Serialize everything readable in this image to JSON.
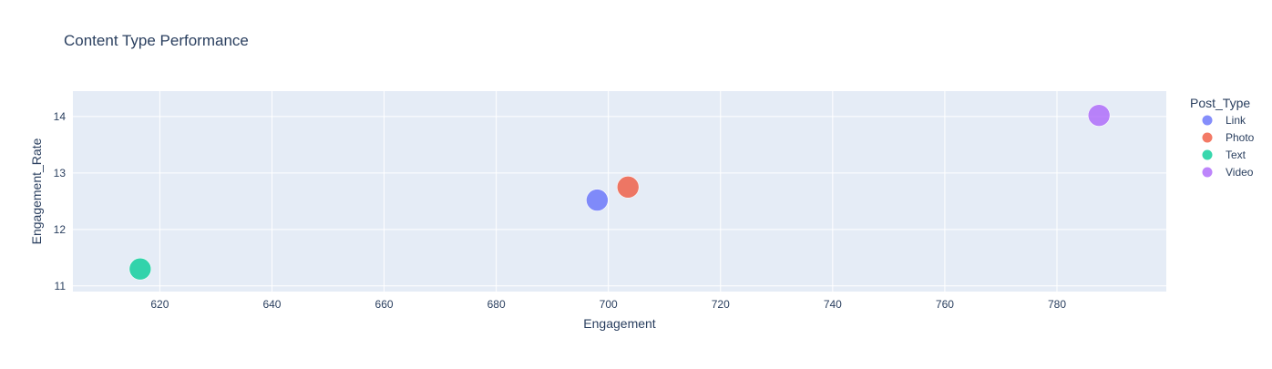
{
  "chart_data": {
    "type": "scatter",
    "title": "Content Type Performance",
    "xlabel": "Engagement",
    "ylabel": "Engagement_Rate",
    "xlim": [
      604.5,
      799.5
    ],
    "ylim": [
      10.9,
      14.45
    ],
    "x_ticks": [
      620,
      640,
      660,
      680,
      700,
      720,
      740,
      760,
      780
    ],
    "y_ticks": [
      11,
      12,
      13,
      14
    ],
    "grid": true,
    "legend_title": "Post_Type",
    "legend_position": "right",
    "series": [
      {
        "name": "Link",
        "color": "#636efa",
        "x": [
          698.0
        ],
        "y": [
          12.52
        ]
      },
      {
        "name": "Photo",
        "color": "#ef553b",
        "x": [
          703.5
        ],
        "y": [
          12.75
        ]
      },
      {
        "name": "Text",
        "color": "#00cc96",
        "x": [
          616.5
        ],
        "y": [
          11.3
        ]
      },
      {
        "name": "Video",
        "color": "#ab63fa",
        "x": [
          787.5
        ],
        "y": [
          14.02
        ]
      }
    ]
  }
}
